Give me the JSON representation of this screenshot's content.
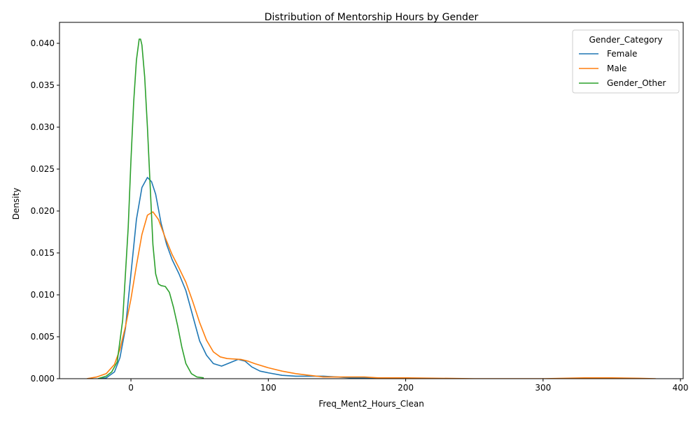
{
  "chart_data": {
    "type": "line",
    "title": "Distribution of Mentorship Hours by Gender",
    "xlabel": "Freq_Ment2_Hours_Clean",
    "ylabel": "Density",
    "xlim": [
      -52,
      402
    ],
    "ylim": [
      0,
      0.0425
    ],
    "xticks": [
      0,
      100,
      200,
      300,
      400
    ],
    "xtick_labels": [
      "0",
      "100",
      "200",
      "300",
      "400"
    ],
    "yticks": [
      0,
      0.005,
      0.01,
      0.015,
      0.02,
      0.025,
      0.03,
      0.035,
      0.04
    ],
    "ytick_labels": [
      "0.000",
      "0.005",
      "0.010",
      "0.015",
      "0.020",
      "0.025",
      "0.030",
      "0.035",
      "0.040"
    ],
    "grid": false,
    "legend": {
      "title": "Gender_Category",
      "position": "top-right"
    },
    "series": [
      {
        "name": "Female",
        "color": "#1f77b4",
        "x": [
          -24,
          -18,
          -12,
          -8,
          -4,
          0,
          4,
          8,
          12,
          15,
          18,
          22,
          26,
          30,
          35,
          40,
          45,
          50,
          55,
          60,
          66,
          72,
          78,
          83,
          88,
          94,
          100,
          110,
          120,
          130,
          140,
          150,
          160,
          170,
          180,
          190,
          200,
          210,
          224
        ],
        "y": [
          0,
          0.0001,
          0.0008,
          0.0025,
          0.006,
          0.0125,
          0.019,
          0.0228,
          0.024,
          0.0235,
          0.022,
          0.0185,
          0.016,
          0.0142,
          0.0125,
          0.0105,
          0.0075,
          0.0045,
          0.0028,
          0.0018,
          0.0015,
          0.0019,
          0.0023,
          0.0021,
          0.0014,
          0.0009,
          0.0007,
          0.0004,
          0.0003,
          0.0003,
          0.0003,
          0.0002,
          0.0001,
          0.0001,
          0.0,
          0.0001,
          0.0001,
          0.0,
          0
        ]
      },
      {
        "name": "Male",
        "color": "#ff7f0e",
        "x": [
          -32,
          -25,
          -18,
          -12,
          -8,
          -4,
          0,
          4,
          8,
          12,
          16,
          20,
          25,
          30,
          35,
          40,
          45,
          50,
          55,
          60,
          65,
          70,
          80,
          85,
          90,
          100,
          110,
          120,
          130,
          140,
          150,
          160,
          170,
          180,
          200,
          250,
          300,
          330,
          350,
          370,
          382
        ],
        "y": [
          0,
          0.0002,
          0.0006,
          0.0017,
          0.0035,
          0.0062,
          0.0095,
          0.0135,
          0.0172,
          0.0195,
          0.0199,
          0.019,
          0.0168,
          0.0148,
          0.0132,
          0.0115,
          0.0092,
          0.0067,
          0.0046,
          0.0032,
          0.0026,
          0.0024,
          0.0023,
          0.0021,
          0.0018,
          0.0013,
          0.0009,
          0.0006,
          0.0004,
          0.0002,
          0.0002,
          0.0002,
          0.0002,
          0.0001,
          0.0001,
          0.0,
          0.0,
          0.0001,
          0.0001,
          5e-05,
          0
        ]
      },
      {
        "name": "Gender_Other",
        "color": "#2ca02c",
        "x": [
          -24,
          -18,
          -14,
          -10,
          -6,
          -2,
          0,
          2,
          4,
          6,
          7,
          8,
          10,
          12,
          14,
          16,
          18,
          20,
          22,
          25,
          28,
          31,
          34,
          37,
          40,
          44,
          48,
          53
        ],
        "y": [
          0,
          0.0003,
          0.0008,
          0.002,
          0.007,
          0.018,
          0.026,
          0.033,
          0.038,
          0.0405,
          0.0405,
          0.0398,
          0.036,
          0.03,
          0.023,
          0.016,
          0.0125,
          0.0113,
          0.0111,
          0.011,
          0.0103,
          0.0085,
          0.0063,
          0.0038,
          0.0018,
          0.0006,
          0.0002,
          0.0001
        ]
      }
    ]
  }
}
